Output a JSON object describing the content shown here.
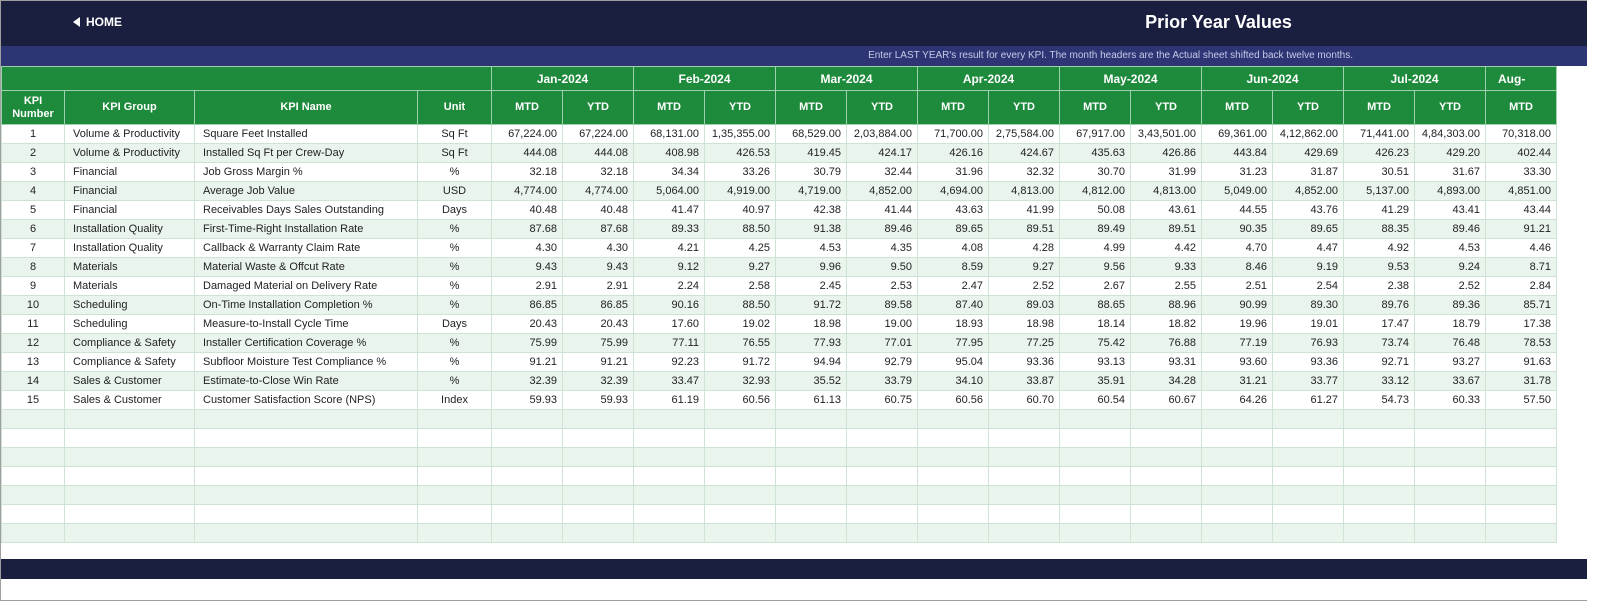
{
  "header": {
    "home_label": "HOME",
    "title": "Prior Year Values",
    "subtitle": "Enter LAST YEAR's result for every KPI. The month headers are the Actual sheet shifted back twelve months."
  },
  "table": {
    "fixed_headers": [
      "KPI Number",
      "KPI Group",
      "KPI Name",
      "Unit"
    ],
    "months": [
      "Jan-2024",
      "Feb-2024",
      "Mar-2024",
      "Apr-2024",
      "May-2024",
      "Jun-2024",
      "Jul-2024",
      "Aug-"
    ],
    "mtd_label": "MTD",
    "ytd_label": "YTD",
    "rows": [
      {
        "num": "1",
        "group": "Volume & Productivity",
        "name": "Square Feet Installed",
        "unit": "Sq Ft",
        "v": [
          "67,224.00",
          "67,224.00",
          "68,131.00",
          "1,35,355.00",
          "68,529.00",
          "2,03,884.00",
          "71,700.00",
          "2,75,584.00",
          "67,917.00",
          "3,43,501.00",
          "69,361.00",
          "4,12,862.00",
          "71,441.00",
          "4,84,303.00",
          "70,318.00"
        ]
      },
      {
        "num": "2",
        "group": "Volume & Productivity",
        "name": "Installed Sq Ft per Crew-Day",
        "unit": "Sq Ft",
        "v": [
          "444.08",
          "444.08",
          "408.98",
          "426.53",
          "419.45",
          "424.17",
          "426.16",
          "424.67",
          "435.63",
          "426.86",
          "443.84",
          "429.69",
          "426.23",
          "429.20",
          "402.44"
        ]
      },
      {
        "num": "3",
        "group": "Financial",
        "name": "Job Gross Margin %",
        "unit": "%",
        "v": [
          "32.18",
          "32.18",
          "34.34",
          "33.26",
          "30.79",
          "32.44",
          "31.96",
          "32.32",
          "30.70",
          "31.99",
          "31.23",
          "31.87",
          "30.51",
          "31.67",
          "33.30"
        ]
      },
      {
        "num": "4",
        "group": "Financial",
        "name": "Average Job Value",
        "unit": "USD",
        "v": [
          "4,774.00",
          "4,774.00",
          "5,064.00",
          "4,919.00",
          "4,719.00",
          "4,852.00",
          "4,694.00",
          "4,813.00",
          "4,812.00",
          "4,813.00",
          "5,049.00",
          "4,852.00",
          "5,137.00",
          "4,893.00",
          "4,851.00"
        ]
      },
      {
        "num": "5",
        "group": "Financial",
        "name": "Receivables Days Sales Outstanding",
        "unit": "Days",
        "v": [
          "40.48",
          "40.48",
          "41.47",
          "40.97",
          "42.38",
          "41.44",
          "43.63",
          "41.99",
          "50.08",
          "43.61",
          "44.55",
          "43.76",
          "41.29",
          "43.41",
          "43.44"
        ]
      },
      {
        "num": "6",
        "group": "Installation Quality",
        "name": "First-Time-Right Installation Rate",
        "unit": "%",
        "v": [
          "87.68",
          "87.68",
          "89.33",
          "88.50",
          "91.38",
          "89.46",
          "89.65",
          "89.51",
          "89.49",
          "89.51",
          "90.35",
          "89.65",
          "88.35",
          "89.46",
          "91.21"
        ]
      },
      {
        "num": "7",
        "group": "Installation Quality",
        "name": "Callback & Warranty Claim Rate",
        "unit": "%",
        "v": [
          "4.30",
          "4.30",
          "4.21",
          "4.25",
          "4.53",
          "4.35",
          "4.08",
          "4.28",
          "4.99",
          "4.42",
          "4.70",
          "4.47",
          "4.92",
          "4.53",
          "4.46"
        ]
      },
      {
        "num": "8",
        "group": "Materials",
        "name": "Material Waste & Offcut Rate",
        "unit": "%",
        "v": [
          "9.43",
          "9.43",
          "9.12",
          "9.27",
          "9.96",
          "9.50",
          "8.59",
          "9.27",
          "9.56",
          "9.33",
          "8.46",
          "9.19",
          "9.53",
          "9.24",
          "8.71"
        ]
      },
      {
        "num": "9",
        "group": "Materials",
        "name": "Damaged Material on Delivery Rate",
        "unit": "%",
        "v": [
          "2.91",
          "2.91",
          "2.24",
          "2.58",
          "2.45",
          "2.53",
          "2.47",
          "2.52",
          "2.67",
          "2.55",
          "2.51",
          "2.54",
          "2.38",
          "2.52",
          "2.84"
        ]
      },
      {
        "num": "10",
        "group": "Scheduling",
        "name": "On-Time Installation Completion %",
        "unit": "%",
        "v": [
          "86.85",
          "86.85",
          "90.16",
          "88.50",
          "91.72",
          "89.58",
          "87.40",
          "89.03",
          "88.65",
          "88.96",
          "90.99",
          "89.30",
          "89.76",
          "89.36",
          "85.71"
        ]
      },
      {
        "num": "11",
        "group": "Scheduling",
        "name": "Measure-to-Install Cycle Time",
        "unit": "Days",
        "v": [
          "20.43",
          "20.43",
          "17.60",
          "19.02",
          "18.98",
          "19.00",
          "18.93",
          "18.98",
          "18.14",
          "18.82",
          "19.96",
          "19.01",
          "17.47",
          "18.79",
          "17.38"
        ]
      },
      {
        "num": "12",
        "group": "Compliance & Safety",
        "name": "Installer Certification Coverage %",
        "unit": "%",
        "v": [
          "75.99",
          "75.99",
          "77.11",
          "76.55",
          "77.93",
          "77.01",
          "77.95",
          "77.25",
          "75.42",
          "76.88",
          "77.19",
          "76.93",
          "73.74",
          "76.48",
          "78.53"
        ]
      },
      {
        "num": "13",
        "group": "Compliance & Safety",
        "name": "Subfloor Moisture Test Compliance %",
        "unit": "%",
        "v": [
          "91.21",
          "91.21",
          "92.23",
          "91.72",
          "94.94",
          "92.79",
          "95.04",
          "93.36",
          "93.13",
          "93.31",
          "93.60",
          "93.36",
          "92.71",
          "93.27",
          "91.63"
        ]
      },
      {
        "num": "14",
        "group": "Sales & Customer",
        "name": "Estimate-to-Close Win Rate",
        "unit": "%",
        "v": [
          "32.39",
          "32.39",
          "33.47",
          "32.93",
          "35.52",
          "33.79",
          "34.10",
          "33.87",
          "35.91",
          "34.28",
          "31.21",
          "33.77",
          "33.12",
          "33.67",
          "31.78"
        ]
      },
      {
        "num": "15",
        "group": "Sales & Customer",
        "name": "Customer Satisfaction Score (NPS)",
        "unit": "Index",
        "v": [
          "59.93",
          "59.93",
          "61.19",
          "60.56",
          "61.13",
          "60.75",
          "60.56",
          "60.70",
          "60.54",
          "60.67",
          "64.26",
          "61.27",
          "54.73",
          "60.33",
          "57.50"
        ]
      }
    ],
    "blank_rows": 7
  }
}
